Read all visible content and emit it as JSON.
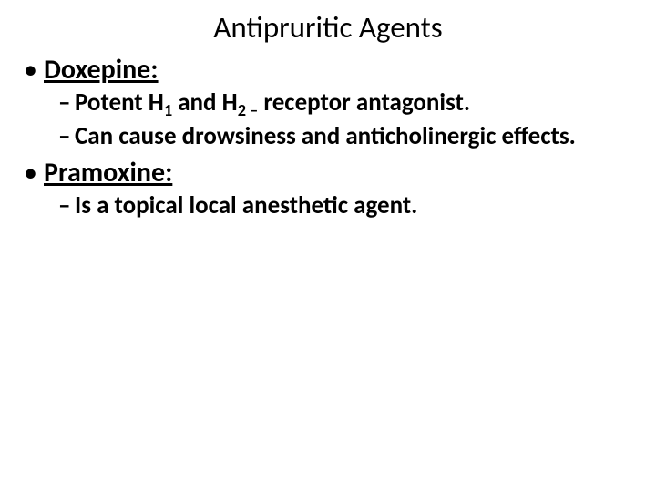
{
  "background_color": "#ffffff",
  "text_color": "#000000",
  "font_family": "Calibri, Arial, sans-serif",
  "title": {
    "text": "Antipruritic Agents",
    "fontsize": 33,
    "weight": "normal",
    "align": "center"
  },
  "bullets": {
    "level1_bullet": "•",
    "level2_dash": "–",
    "level1_fontsize": 30,
    "level2_fontsize": 27,
    "level1_weight": "bold",
    "level1_underline": true,
    "level2_weight": "bold"
  },
  "items": [
    {
      "heading": "Doxepine:",
      "sub": [
        {
          "prefix": "Potent H",
          "sub1": "1",
          "mid": " and H",
          "sub2": "2 –",
          "suffix": " receptor antagonist."
        },
        {
          "text": "Can cause drowsiness and anticholinergic effects."
        }
      ]
    },
    {
      "heading": "Pramoxine:",
      "sub": [
        {
          "text": "Is a topical local anesthetic agent."
        }
      ]
    }
  ]
}
